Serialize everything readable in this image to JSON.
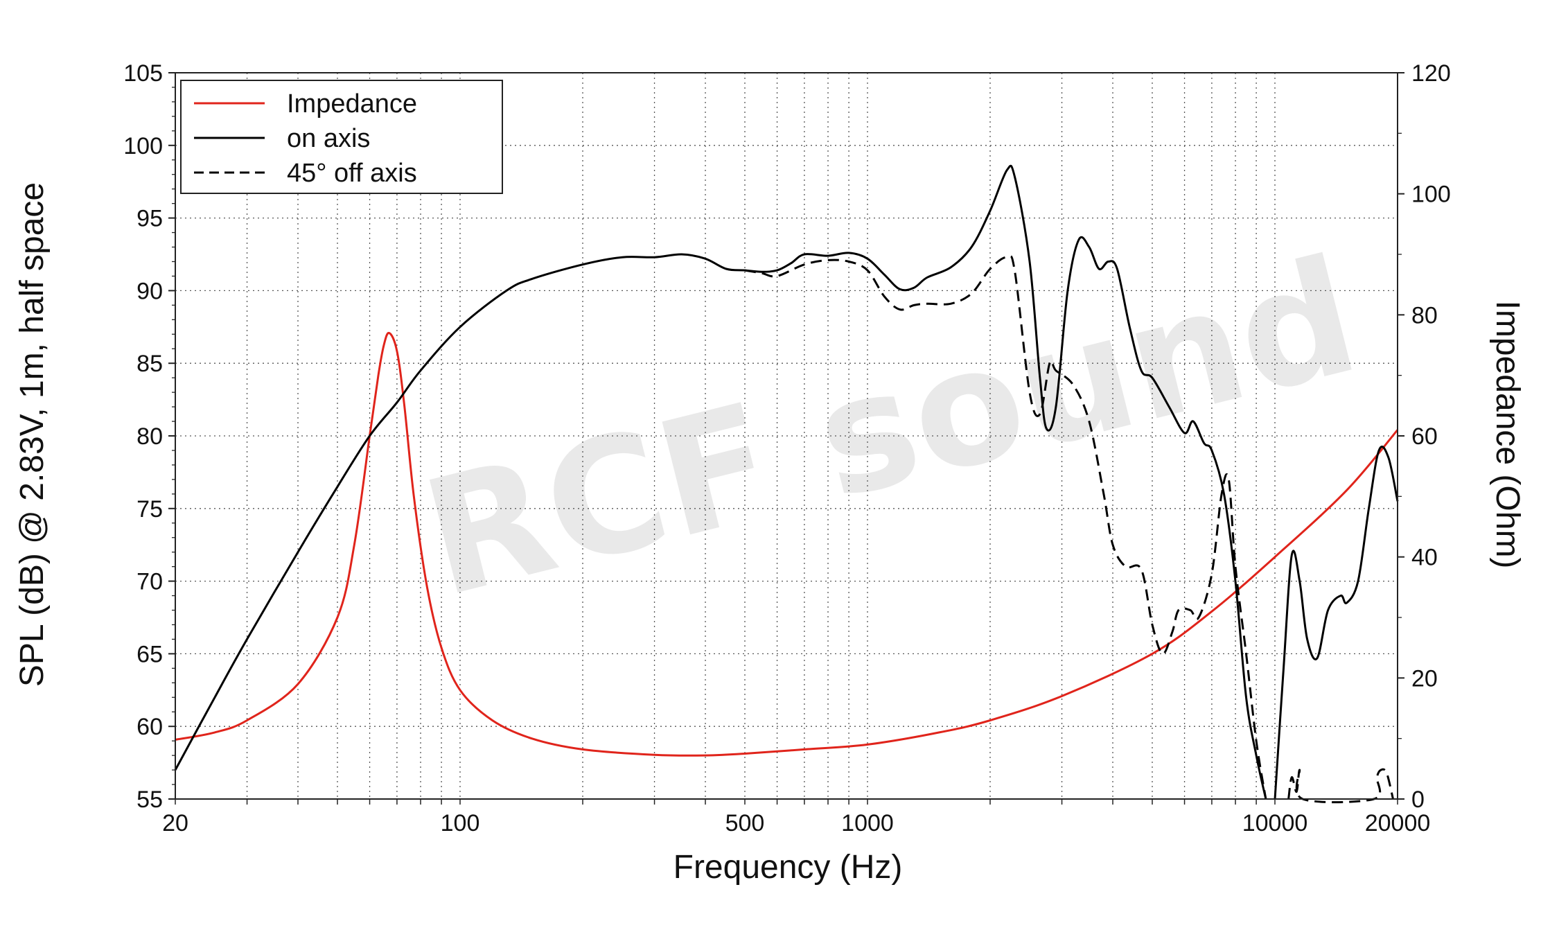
{
  "chart_data": {
    "type": "line",
    "xlabel": "Frequency (Hz)",
    "ylabel_left": "SPL (dB) @ 2.83V, 1m, half space",
    "ylabel_right": "Impedance (Ohm)",
    "x_scale": "log",
    "xlim": [
      20,
      20000
    ],
    "ylim_left": [
      55,
      105
    ],
    "ylim_right": [
      0,
      120
    ],
    "x_tick_labels": [
      "20",
      "100",
      "500",
      "1000",
      "10000",
      "20000"
    ],
    "x_tick_values": [
      20,
      100,
      500,
      1000,
      10000,
      20000
    ],
    "y_left_ticks": [
      55,
      60,
      65,
      70,
      75,
      80,
      85,
      90,
      95,
      100,
      105
    ],
    "y_right_ticks": [
      0,
      20,
      40,
      60,
      80,
      100,
      120
    ],
    "grid": true,
    "legend_position": "top-left",
    "watermark": "RCF sound",
    "colors": {
      "impedance": "#e0241b",
      "on_axis": "#000000",
      "off_axis": "#000000",
      "grid": "#555555"
    },
    "series": [
      {
        "name": "Impedance",
        "axis": "right",
        "style": "solid",
        "color": "#e0241b",
        "points": [
          [
            20,
            9.8
          ],
          [
            25,
            11
          ],
          [
            30,
            13
          ],
          [
            40,
            19
          ],
          [
            50,
            30
          ],
          [
            55,
            42
          ],
          [
            60,
            60
          ],
          [
            63,
            70
          ],
          [
            65,
            75
          ],
          [
            67,
            77
          ],
          [
            70,
            74
          ],
          [
            73,
            65
          ],
          [
            77,
            50
          ],
          [
            83,
            35
          ],
          [
            90,
            25
          ],
          [
            100,
            18
          ],
          [
            120,
            13
          ],
          [
            150,
            10
          ],
          [
            200,
            8.2
          ],
          [
            300,
            7.3
          ],
          [
            400,
            7.2
          ],
          [
            500,
            7.5
          ],
          [
            700,
            8.2
          ],
          [
            1000,
            9
          ],
          [
            1500,
            11
          ],
          [
            2000,
            13
          ],
          [
            3000,
            17
          ],
          [
            5000,
            24
          ],
          [
            7000,
            31
          ],
          [
            10000,
            40
          ],
          [
            15000,
            51
          ],
          [
            20000,
            61
          ]
        ]
      },
      {
        "name": "on axis",
        "axis": "left",
        "style": "solid",
        "color": "#000000",
        "points": [
          [
            20,
            57
          ],
          [
            25,
            62
          ],
          [
            30,
            66
          ],
          [
            40,
            72
          ],
          [
            50,
            76.5
          ],
          [
            60,
            80
          ],
          [
            70,
            82.3
          ],
          [
            80,
            84.5
          ],
          [
            100,
            87.5
          ],
          [
            130,
            90
          ],
          [
            150,
            90.8
          ],
          [
            200,
            91.8
          ],
          [
            250,
            92.3
          ],
          [
            300,
            92.3
          ],
          [
            350,
            92.5
          ],
          [
            400,
            92.2
          ],
          [
            450,
            91.5
          ],
          [
            500,
            91.4
          ],
          [
            550,
            91.3
          ],
          [
            600,
            91.4
          ],
          [
            650,
            91.9
          ],
          [
            700,
            92.5
          ],
          [
            800,
            92.4
          ],
          [
            900,
            92.6
          ],
          [
            1000,
            92.2
          ],
          [
            1100,
            91.1
          ],
          [
            1200,
            90.1
          ],
          [
            1300,
            90.2
          ],
          [
            1400,
            90.9
          ],
          [
            1600,
            91.6
          ],
          [
            1800,
            93
          ],
          [
            2000,
            95.5
          ],
          [
            2200,
            98.3
          ],
          [
            2300,
            97.8
          ],
          [
            2500,
            92
          ],
          [
            2650,
            84
          ],
          [
            2750,
            80.5
          ],
          [
            2900,
            82
          ],
          [
            3100,
            90
          ],
          [
            3300,
            93.5
          ],
          [
            3500,
            93
          ],
          [
            3700,
            91.5
          ],
          [
            3900,
            92
          ],
          [
            4100,
            91.5
          ],
          [
            4400,
            87.5
          ],
          [
            4700,
            84.5
          ],
          [
            5000,
            84
          ],
          [
            5500,
            82
          ],
          [
            6000,
            80.2
          ],
          [
            6300,
            81
          ],
          [
            6700,
            79.5
          ],
          [
            7000,
            79
          ],
          [
            7500,
            76
          ],
          [
            8000,
            70
          ],
          [
            8500,
            62
          ],
          [
            9000,
            58
          ],
          [
            9500,
            55
          ]
        ],
        "points_hf": [
          [
            10000,
            55
          ],
          [
            10500,
            64
          ],
          [
            11000,
            71.8
          ],
          [
            11500,
            70
          ],
          [
            12000,
            66
          ],
          [
            12700,
            64.7
          ],
          [
            13500,
            68
          ],
          [
            14500,
            69
          ],
          [
            15000,
            68.5
          ],
          [
            16000,
            70
          ],
          [
            17000,
            75
          ],
          [
            18000,
            79
          ],
          [
            19000,
            78.5
          ],
          [
            20000,
            75.5
          ]
        ]
      },
      {
        "name": "45° off axis",
        "axis": "left",
        "style": "dashed",
        "color": "#000000",
        "points": [
          [
            500,
            91.4
          ],
          [
            550,
            91.2
          ],
          [
            600,
            91
          ],
          [
            700,
            91.8
          ],
          [
            800,
            92.1
          ],
          [
            900,
            92
          ],
          [
            1000,
            91.4
          ],
          [
            1100,
            89.6
          ],
          [
            1200,
            88.7
          ],
          [
            1300,
            89
          ],
          [
            1400,
            89.1
          ],
          [
            1600,
            89.1
          ],
          [
            1800,
            89.8
          ],
          [
            2000,
            91.5
          ],
          [
            2200,
            92.3
          ],
          [
            2300,
            91.3
          ],
          [
            2500,
            83
          ],
          [
            2650,
            81.5
          ],
          [
            2800,
            85
          ],
          [
            2900,
            84.5
          ],
          [
            3200,
            83.5
          ],
          [
            3500,
            81
          ],
          [
            3800,
            76
          ],
          [
            4000,
            72.5
          ],
          [
            4300,
            71
          ],
          [
            4700,
            70.8
          ],
          [
            5000,
            67
          ],
          [
            5300,
            65
          ],
          [
            5600,
            66.5
          ],
          [
            5800,
            68
          ],
          [
            6200,
            68
          ],
          [
            6500,
            67.5
          ],
          [
            7000,
            70.5
          ],
          [
            7400,
            76
          ],
          [
            7700,
            77
          ],
          [
            8000,
            71
          ],
          [
            8500,
            65
          ],
          [
            9000,
            59
          ],
          [
            9500,
            55
          ]
        ],
        "points_hf": [
          [
            10800,
            55
          ],
          [
            11000,
            56.5
          ],
          [
            11300,
            55.5
          ],
          [
            11500,
            57
          ],
          [
            11700,
            55
          ],
          [
            17500,
            55
          ],
          [
            17800,
            56.5
          ],
          [
            18200,
            57
          ],
          [
            18800,
            56.8
          ],
          [
            19500,
            55
          ]
        ]
      }
    ]
  }
}
